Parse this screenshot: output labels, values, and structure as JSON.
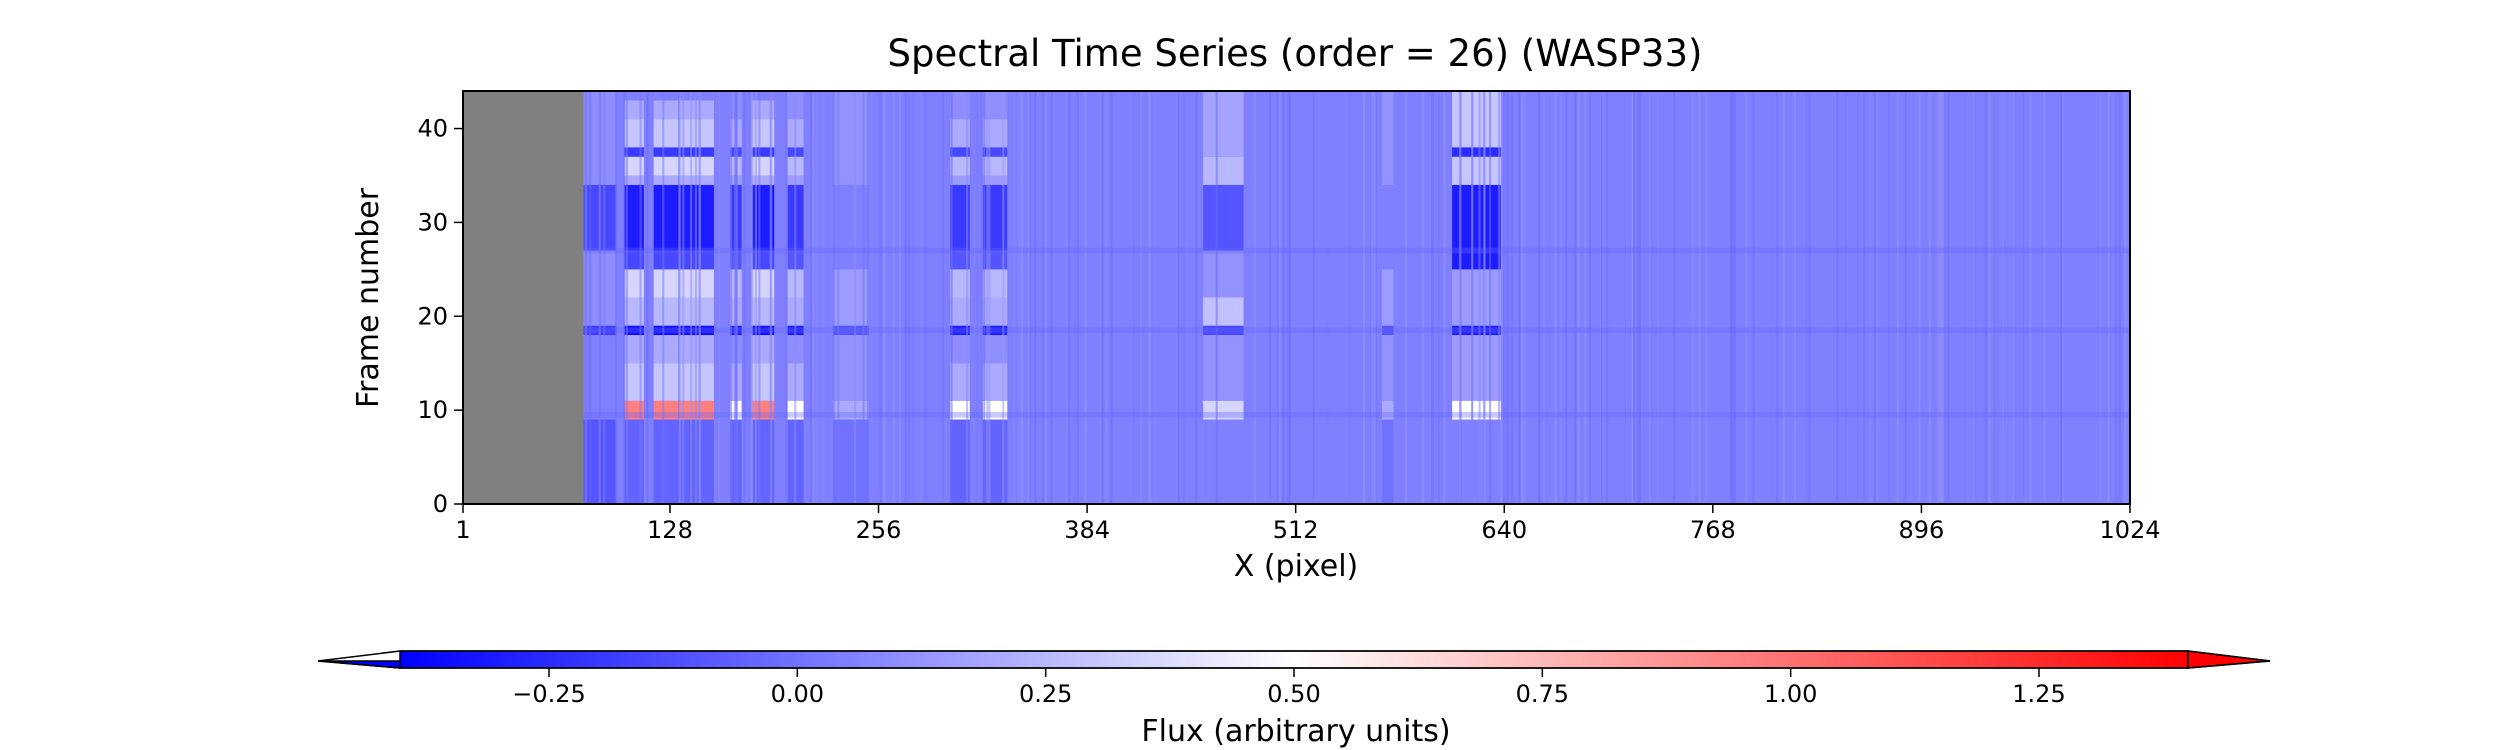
{
  "chart_data": {
    "type": "heatmap",
    "title": "Spectral Time Series (order = 26) (WASP33)",
    "xlabel": "X (pixel)",
    "ylabel": "Frame number",
    "xlim": [
      1,
      1024
    ],
    "ylim": [
      0,
      44
    ],
    "xticks": [
      1,
      128,
      256,
      384,
      512,
      640,
      768,
      896,
      1024
    ],
    "yticks": [
      0,
      10,
      20,
      30,
      40
    ],
    "masked_region": {
      "x": [
        1,
        75
      ],
      "color": "#808080"
    },
    "baseline_flux": 0.05,
    "columns": [
      {
        "x": [
          75,
          95
        ],
        "profile": "edge"
      },
      {
        "x": [
          100,
          112
        ],
        "profile": "bright"
      },
      {
        "x": [
          118,
          155
        ],
        "profile": "bright"
      },
      {
        "x": [
          165,
          172
        ],
        "profile": "medium"
      },
      {
        "x": [
          178,
          192
        ],
        "profile": "bright"
      },
      {
        "x": [
          200,
          210
        ],
        "profile": "medium"
      },
      {
        "x": [
          228,
          250
        ],
        "profile": "faint"
      },
      {
        "x": [
          300,
          312
        ],
        "profile": "medium"
      },
      {
        "x": [
          320,
          335
        ],
        "profile": "medium"
      },
      {
        "x": [
          455,
          480
        ],
        "profile": "band"
      },
      {
        "x": [
          565,
          572
        ],
        "profile": "faint"
      },
      {
        "x": [
          608,
          638
        ],
        "profile": "strong"
      }
    ],
    "profiles": {
      "bright": [
        [
          0,
          9,
          -0.05
        ],
        [
          9,
          11,
          0.95
        ],
        [
          11,
          15,
          0.3
        ],
        [
          15,
          18,
          0.2
        ],
        [
          18,
          19,
          -0.35
        ],
        [
          19,
          22,
          0.25
        ],
        [
          22,
          25,
          0.35
        ],
        [
          25,
          27,
          -0.15
        ],
        [
          27,
          34,
          -0.3
        ],
        [
          34,
          35,
          0.2
        ],
        [
          35,
          37,
          0.35
        ],
        [
          37,
          38,
          -0.2
        ],
        [
          38,
          41,
          0.3
        ],
        [
          41,
          43,
          0.2
        ],
        [
          43,
          44,
          0.05
        ]
      ],
      "medium": [
        [
          0,
          9,
          -0.05
        ],
        [
          9,
          11,
          0.5
        ],
        [
          11,
          15,
          0.2
        ],
        [
          15,
          18,
          0.1
        ],
        [
          18,
          19,
          -0.3
        ],
        [
          19,
          22,
          0.2
        ],
        [
          22,
          25,
          0.25
        ],
        [
          25,
          27,
          -0.1
        ],
        [
          27,
          34,
          -0.2
        ],
        [
          34,
          35,
          0.15
        ],
        [
          35,
          37,
          0.25
        ],
        [
          37,
          38,
          -0.15
        ],
        [
          38,
          41,
          0.2
        ],
        [
          41,
          44,
          0.1
        ]
      ],
      "faint": [
        [
          0,
          9,
          0.0
        ],
        [
          9,
          11,
          0.2
        ],
        [
          11,
          18,
          0.12
        ],
        [
          18,
          19,
          -0.1
        ],
        [
          19,
          25,
          0.15
        ],
        [
          25,
          34,
          0.05
        ],
        [
          34,
          44,
          0.12
        ]
      ],
      "band": [
        [
          0,
          9,
          0.05
        ],
        [
          9,
          11,
          0.35
        ],
        [
          11,
          18,
          0.12
        ],
        [
          18,
          19,
          -0.15
        ],
        [
          19,
          22,
          0.28
        ],
        [
          22,
          27,
          0.12
        ],
        [
          27,
          34,
          -0.1
        ],
        [
          34,
          37,
          0.25
        ],
        [
          37,
          44,
          0.18
        ]
      ],
      "strong": [
        [
          0,
          9,
          0.05
        ],
        [
          9,
          11,
          0.5
        ],
        [
          11,
          18,
          0.15
        ],
        [
          18,
          19,
          -0.3
        ],
        [
          19,
          25,
          0.15
        ],
        [
          25,
          34,
          -0.3
        ],
        [
          34,
          37,
          0.3
        ],
        [
          37,
          38,
          -0.25
        ],
        [
          38,
          44,
          0.3
        ]
      ],
      "edge": [
        [
          0,
          9,
          -0.1
        ],
        [
          9,
          18,
          0.05
        ],
        [
          18,
          19,
          -0.2
        ],
        [
          19,
          27,
          0.1
        ],
        [
          27,
          34,
          -0.15
        ],
        [
          34,
          44,
          0.1
        ]
      ]
    },
    "colormap": {
      "name": "bwr",
      "vmin": -0.4,
      "vmax": 1.4,
      "low_color": "#0000ff",
      "mid_color": "#ffffff",
      "high_color": "#ff0000",
      "extend": "both"
    },
    "colorbar": {
      "label": "Flux (arbitrary units)",
      "ticks": [
        -0.25,
        0.0,
        0.25,
        0.5,
        0.75,
        1.0,
        1.25
      ],
      "tick_labels": [
        "−0.25",
        "0.00",
        "0.25",
        "0.50",
        "0.75",
        "1.00",
        "1.25"
      ],
      "orientation": "horizontal",
      "position": "bottom"
    }
  }
}
